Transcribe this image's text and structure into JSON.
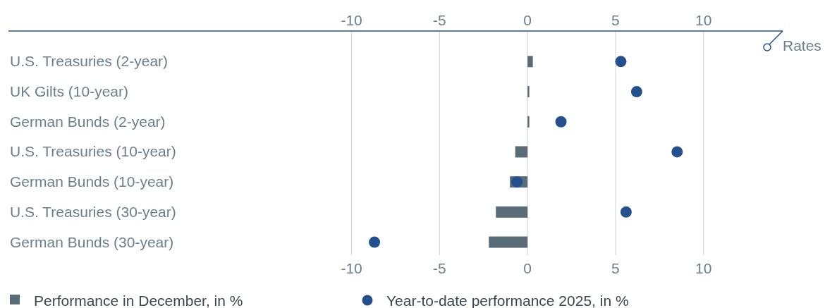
{
  "chart_data": {
    "type": "bar",
    "orientation": "horizontal",
    "categories": [
      "U.S. Treasuries (2-year)",
      "UK Gilts (10-year)",
      "German Bunds (2-year)",
      "U.S. Treasuries (10-year)",
      "German Bunds (10-year)",
      "U.S. Treasuries (30-year)",
      "German Bunds (30-year)"
    ],
    "series": [
      {
        "name": "Performance in December, in %",
        "color": "#5a6b78",
        "values": [
          0.3,
          0.1,
          0.1,
          -0.7,
          -1.0,
          -1.8,
          -2.2
        ]
      },
      {
        "name": "Year-to-date performance 2025, in %",
        "type": "scatter",
        "color": "#25508f",
        "values": [
          5.3,
          6.2,
          1.9,
          8.5,
          -0.6,
          5.6,
          -8.7
        ]
      }
    ],
    "xlim": [
      -29.5,
      14.5
    ],
    "xticks": [
      -10,
      -5,
      0,
      5,
      10
    ],
    "x2lim": [
      -29.5,
      14.5
    ],
    "x2ticks": [
      -10,
      -5,
      0,
      5,
      10
    ],
    "annotations": [
      "Rates"
    ],
    "grid": "x",
    "legend": "bottom left",
    "marker": "circle"
  }
}
